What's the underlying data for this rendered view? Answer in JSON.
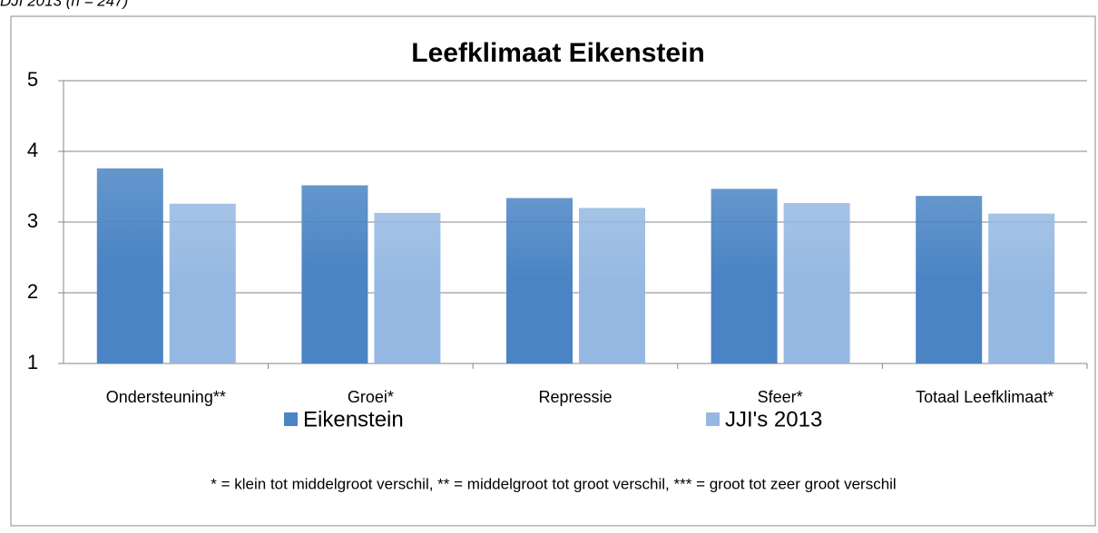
{
  "chart_data": {
    "type": "bar",
    "caption": "DJI 2013 (n = 247)",
    "title": "Leefklimaat Eikenstein",
    "categories": [
      "Ondersteuning**",
      "Groei*",
      "Repressie",
      "Sfeer*",
      "Totaal Leefklimaat*"
    ],
    "series": [
      {
        "name": "Eikenstein",
        "color": "#4a84c4",
        "values": [
          3.76,
          3.52,
          3.34,
          3.47,
          3.37
        ]
      },
      {
        "name": "JJI's 2013",
        "color": "#95b8e2",
        "values": [
          3.26,
          3.13,
          3.2,
          3.27,
          3.12
        ]
      }
    ],
    "ylim": [
      1,
      5
    ],
    "yticks": [
      1,
      2,
      3,
      4,
      5
    ],
    "grid": true,
    "legend": "bottom",
    "footnote": "* = klein tot middelgroot verschil, ** = middelgroot tot groot verschil, *** = groot tot zeer groot verschil"
  }
}
